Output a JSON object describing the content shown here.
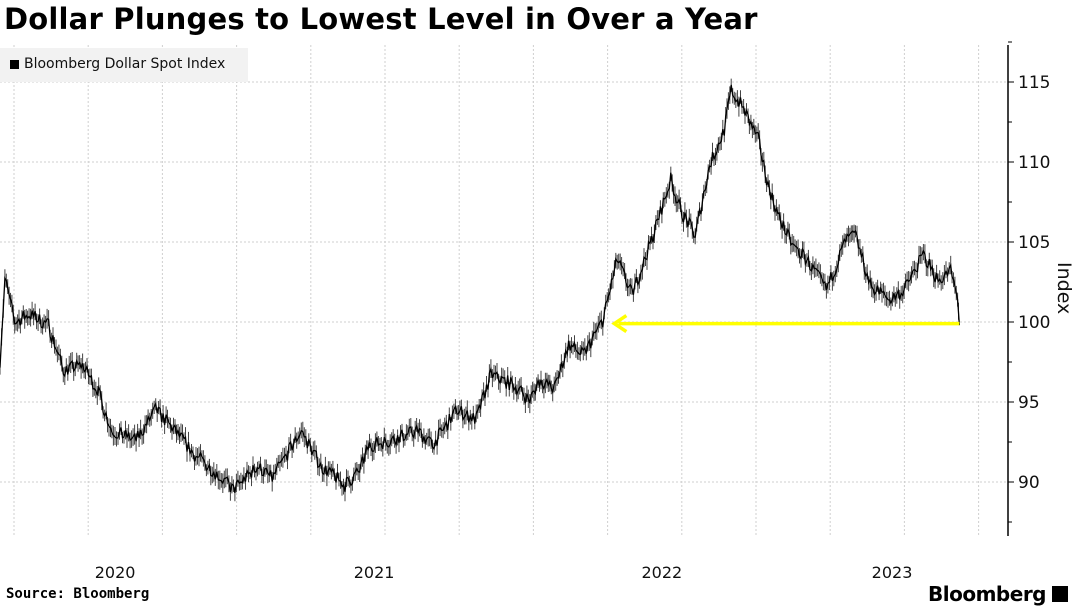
{
  "chart_data": {
    "type": "line",
    "title": "Dollar Plunges to Lowest Level in Over a Year",
    "legend": [
      "Bloomberg Dollar Spot Index"
    ],
    "legend_placement": "top-left",
    "ylabel": "Index",
    "xlabel": "",
    "ylim": [
      87,
      117
    ],
    "yticks": [
      90,
      95,
      100,
      105,
      110,
      115
    ],
    "xticks": [
      {
        "label": "2020",
        "t": 2020.6
      },
      {
        "label": "2021",
        "t": 2021.5
      },
      {
        "label": "2022",
        "t": 2022.5
      },
      {
        "label": "2023",
        "t": 2023.3
      }
    ],
    "xlim": [
      2020.2,
      2023.63
    ],
    "grid": true,
    "series": [
      {
        "name": "Bloomberg Dollar Spot Index",
        "color": "#000000",
        "points": [
          [
            2020.2,
            97.6
          ],
          [
            2020.217,
            102.7
          ],
          [
            2020.251,
            100
          ],
          [
            2020.301,
            100.5
          ],
          [
            2020.369,
            99.8
          ],
          [
            2020.42,
            97
          ],
          [
            2020.487,
            97.3
          ],
          [
            2020.538,
            95.8
          ],
          [
            2020.589,
            93.2
          ],
          [
            2020.673,
            92.6
          ],
          [
            2020.741,
            94.5
          ],
          [
            2020.808,
            93.2
          ],
          [
            2020.876,
            91.7
          ],
          [
            2020.943,
            90.7
          ],
          [
            2021.011,
            89.5
          ],
          [
            2021.095,
            91
          ],
          [
            2021.146,
            90.2
          ],
          [
            2021.247,
            93.2
          ],
          [
            2021.315,
            91
          ],
          [
            2021.399,
            89.8
          ],
          [
            2021.45,
            90.7
          ],
          [
            2021.484,
            92.3
          ],
          [
            2021.551,
            92.6
          ],
          [
            2021.653,
            93.2
          ],
          [
            2021.703,
            92.3
          ],
          [
            2021.788,
            94.5
          ],
          [
            2021.855,
            93.9
          ],
          [
            2021.906,
            96.7
          ],
          [
            2021.991,
            96
          ],
          [
            2022.041,
            95.1
          ],
          [
            2022.075,
            96.4
          ],
          [
            2022.126,
            95.8
          ],
          [
            2022.176,
            98.6
          ],
          [
            2022.227,
            97.9
          ],
          [
            2022.295,
            100.1
          ],
          [
            2022.345,
            103.9
          ],
          [
            2022.396,
            101.7
          ],
          [
            2022.464,
            105.1
          ],
          [
            2022.531,
            108.9
          ],
          [
            2022.565,
            107
          ],
          [
            2022.616,
            105.4
          ],
          [
            2022.666,
            109.8
          ],
          [
            2022.717,
            112
          ],
          [
            2022.741,
            114.5
          ],
          [
            2022.784,
            113.3
          ],
          [
            2022.835,
            111.4
          ],
          [
            2022.869,
            108.6
          ],
          [
            2022.903,
            106.7
          ],
          [
            2022.953,
            104.8
          ],
          [
            2023.004,
            103.9
          ],
          [
            2023.072,
            102
          ],
          [
            2023.139,
            105.1
          ],
          [
            2023.173,
            105.4
          ],
          [
            2023.224,
            102.3
          ],
          [
            2023.291,
            101.4
          ],
          [
            2023.342,
            102
          ],
          [
            2023.409,
            104.2
          ],
          [
            2023.46,
            102.6
          ],
          [
            2023.504,
            103.2
          ],
          [
            2023.528,
            101.4
          ],
          [
            2023.534,
            99.8
          ]
        ]
      }
    ],
    "annotation": {
      "type": "arrow",
      "value": 99.9,
      "color": "#ffff00",
      "from_t": 2023.534,
      "to_t": 2022.335
    }
  },
  "footer": {
    "source": "Source: Bloomberg",
    "brand": "Bloomberg"
  }
}
